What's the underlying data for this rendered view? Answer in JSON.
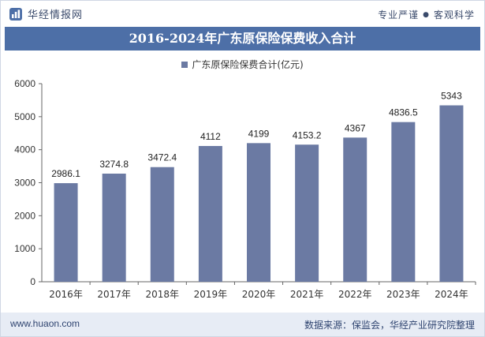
{
  "header": {
    "brand": "华经情报网",
    "tagline_left": "专业严谨",
    "tagline_right": "客观科学"
  },
  "footer": {
    "url": "www.huaon.com",
    "source": "数据来源：保监会，华经产业研究院整理"
  },
  "colors": {
    "bar": "#6b7aa3",
    "title_bg": "#4d6fa7",
    "footer_bg": "#e7ecf5"
  },
  "chart_data": {
    "type": "bar",
    "title": "2016-2024年广东原保险保费收入合计",
    "legend": "广东原保险保费合计(亿元)",
    "categories": [
      "2016年",
      "2017年",
      "2018年",
      "2019年",
      "2020年",
      "2021年",
      "2022年",
      "2023年",
      "2024年"
    ],
    "values": [
      2986.1,
      3274.8,
      3472.4,
      4112,
      4199,
      4153.2,
      4367,
      4836.5,
      5343
    ],
    "value_labels": [
      "2986.1",
      "3274.8",
      "3472.4",
      "4112",
      "4199",
      "4153.2",
      "4367",
      "4836.5",
      "5343"
    ],
    "ylim": [
      0,
      6000
    ],
    "yticks": [
      0,
      1000,
      2000,
      3000,
      4000,
      5000,
      6000
    ],
    "ytick_labels": [
      "0",
      "1000",
      "2000",
      "3000",
      "4000",
      "5000",
      "6000"
    ],
    "xlabel": "",
    "ylabel": "",
    "grid": false
  }
}
